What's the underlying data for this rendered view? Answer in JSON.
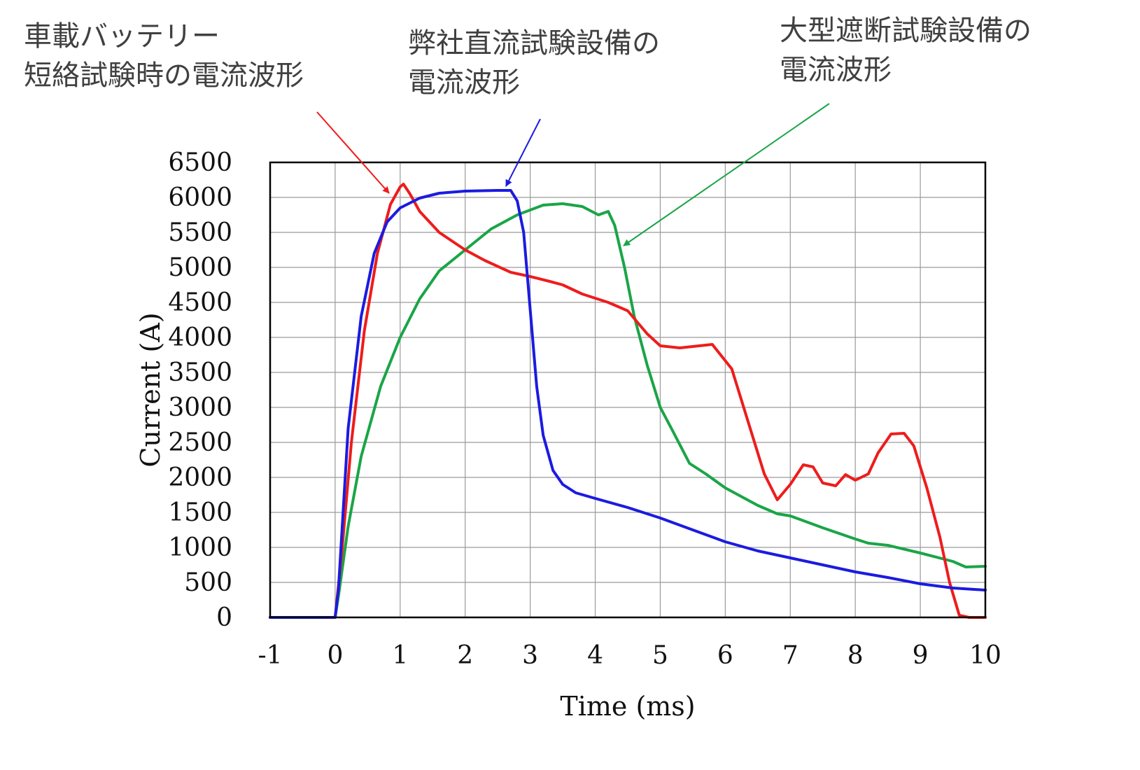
{
  "chart_data": {
    "type": "line",
    "xlabel": "Time (ms)",
    "ylabel": "Current (A)",
    "xlim": [
      -1,
      10
    ],
    "ylim": [
      0,
      6500
    ],
    "x_ticks": [
      "-1",
      "0",
      "1",
      "2",
      "3",
      "4",
      "5",
      "6",
      "7",
      "8",
      "9",
      "10"
    ],
    "y_ticks": [
      "0",
      "500",
      "1000",
      "1500",
      "2000",
      "2500",
      "3000",
      "3500",
      "4000",
      "4500",
      "5000",
      "5500",
      "6000",
      "6500"
    ],
    "grid": true,
    "series": [
      {
        "name": "車載バッテリー短絡試験時の電流波形",
        "color": "#ee1c1c",
        "points": [
          [
            -1,
            0
          ],
          [
            0,
            0
          ],
          [
            0.1,
            900
          ],
          [
            0.25,
            2500
          ],
          [
            0.45,
            4100
          ],
          [
            0.65,
            5200
          ],
          [
            0.85,
            5900
          ],
          [
            1.0,
            6150
          ],
          [
            1.05,
            6190
          ],
          [
            1.15,
            6050
          ],
          [
            1.3,
            5800
          ],
          [
            1.6,
            5500
          ],
          [
            2.0,
            5250
          ],
          [
            2.3,
            5100
          ],
          [
            2.7,
            4930
          ],
          [
            3.0,
            4870
          ],
          [
            3.3,
            4800
          ],
          [
            3.5,
            4750
          ],
          [
            3.8,
            4620
          ],
          [
            4.2,
            4500
          ],
          [
            4.5,
            4380
          ],
          [
            4.8,
            4050
          ],
          [
            5.0,
            3880
          ],
          [
            5.3,
            3850
          ],
          [
            5.6,
            3880
          ],
          [
            5.8,
            3900
          ],
          [
            6.1,
            3550
          ],
          [
            6.4,
            2650
          ],
          [
            6.6,
            2050
          ],
          [
            6.8,
            1680
          ],
          [
            7.0,
            1900
          ],
          [
            7.2,
            2180
          ],
          [
            7.35,
            2150
          ],
          [
            7.5,
            1920
          ],
          [
            7.7,
            1880
          ],
          [
            7.85,
            2040
          ],
          [
            8.0,
            1960
          ],
          [
            8.2,
            2050
          ],
          [
            8.35,
            2350
          ],
          [
            8.55,
            2620
          ],
          [
            8.75,
            2630
          ],
          [
            8.9,
            2450
          ],
          [
            9.1,
            1850
          ],
          [
            9.3,
            1150
          ],
          [
            9.45,
            500
          ],
          [
            9.6,
            30
          ],
          [
            9.75,
            0
          ],
          [
            10,
            0
          ]
        ]
      },
      {
        "name": "弊社直流試験設備の電流波形",
        "color": "#1b1be0",
        "points": [
          [
            -1,
            0
          ],
          [
            0,
            0
          ],
          [
            0.05,
            400
          ],
          [
            0.2,
            2700
          ],
          [
            0.4,
            4300
          ],
          [
            0.6,
            5200
          ],
          [
            0.8,
            5650
          ],
          [
            1.0,
            5850
          ],
          [
            1.3,
            5990
          ],
          [
            1.6,
            6060
          ],
          [
            2.0,
            6090
          ],
          [
            2.5,
            6100
          ],
          [
            2.7,
            6100
          ],
          [
            2.8,
            5950
          ],
          [
            2.9,
            5500
          ],
          [
            3.0,
            4400
          ],
          [
            3.1,
            3300
          ],
          [
            3.2,
            2600
          ],
          [
            3.35,
            2100
          ],
          [
            3.5,
            1900
          ],
          [
            3.7,
            1780
          ],
          [
            4.0,
            1700
          ],
          [
            4.5,
            1570
          ],
          [
            5.0,
            1420
          ],
          [
            5.5,
            1250
          ],
          [
            6.0,
            1080
          ],
          [
            6.5,
            950
          ],
          [
            7.0,
            850
          ],
          [
            7.5,
            750
          ],
          [
            8.0,
            650
          ],
          [
            8.5,
            570
          ],
          [
            9.0,
            480
          ],
          [
            9.5,
            420
          ],
          [
            10,
            390
          ]
        ]
      },
      {
        "name": "大型遮断試験設備の電流波形",
        "color": "#1aa547",
        "points": [
          [
            -1,
            0
          ],
          [
            0,
            0
          ],
          [
            0.05,
            300
          ],
          [
            0.2,
            1300
          ],
          [
            0.4,
            2300
          ],
          [
            0.7,
            3300
          ],
          [
            1.0,
            4000
          ],
          [
            1.3,
            4550
          ],
          [
            1.6,
            4950
          ],
          [
            2.0,
            5250
          ],
          [
            2.4,
            5550
          ],
          [
            2.8,
            5750
          ],
          [
            3.2,
            5890
          ],
          [
            3.5,
            5910
          ],
          [
            3.8,
            5870
          ],
          [
            4.05,
            5750
          ],
          [
            4.2,
            5800
          ],
          [
            4.3,
            5600
          ],
          [
            4.45,
            5000
          ],
          [
            4.6,
            4300
          ],
          [
            4.8,
            3600
          ],
          [
            5.0,
            3000
          ],
          [
            5.2,
            2650
          ],
          [
            5.45,
            2200
          ],
          [
            5.7,
            2050
          ],
          [
            6.0,
            1850
          ],
          [
            6.5,
            1600
          ],
          [
            6.8,
            1480
          ],
          [
            7.0,
            1450
          ],
          [
            7.5,
            1280
          ],
          [
            8.0,
            1120
          ],
          [
            8.2,
            1060
          ],
          [
            8.5,
            1030
          ],
          [
            9.0,
            920
          ],
          [
            9.5,
            800
          ],
          [
            9.7,
            720
          ],
          [
            10,
            730
          ]
        ]
      }
    ]
  },
  "annotations": {
    "red": {
      "line1": "車載バッテリー",
      "line2": "短絡試験時の電流波形"
    },
    "blue": {
      "line1": "弊社直流試験設備の",
      "line2": "電流波形"
    },
    "green": {
      "line1": "大型遮断試験設備の",
      "line2": "電流波形"
    }
  }
}
